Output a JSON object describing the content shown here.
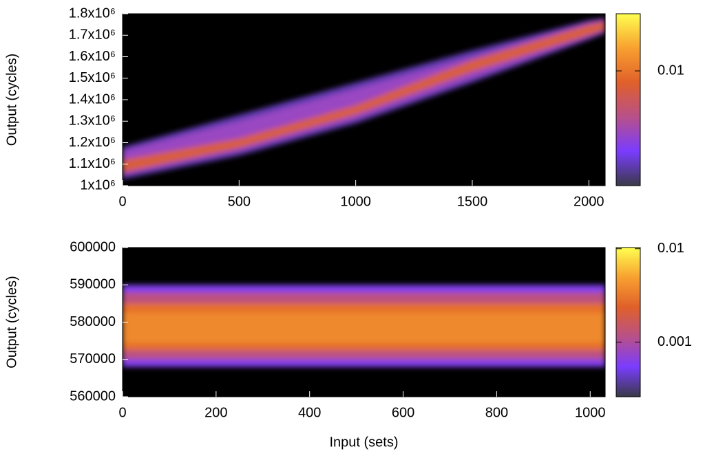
{
  "chart_data": [
    {
      "type": "heatmap",
      "ylabel": "Output (cycles)",
      "xlim": [
        0,
        2070
      ],
      "xticks": [
        0,
        500,
        1000,
        1500,
        2000
      ],
      "ylim": [
        1000000,
        1800000
      ],
      "yticks": [
        {
          "value": 1000000,
          "label": "1x10⁶"
        },
        {
          "value": 1100000,
          "label": "1.1x10⁶"
        },
        {
          "value": 1200000,
          "label": "1.2x10⁶"
        },
        {
          "value": 1300000,
          "label": "1.3x10⁶"
        },
        {
          "value": 1400000,
          "label": "1.4x10⁶"
        },
        {
          "value": 1500000,
          "label": "1.5x10⁶"
        },
        {
          "value": 1600000,
          "label": "1.6x10⁶"
        },
        {
          "value": 1700000,
          "label": "1.7x10⁶"
        },
        {
          "value": 1800000,
          "label": "1.8x10⁶"
        }
      ],
      "clim": [
        0.0011,
        0.03
      ],
      "cticks": [
        0.01
      ],
      "log_color": true,
      "palette": [
        "#3a3a48",
        "#7a3cff",
        "#b8508a",
        "#e0602a",
        "#f8a030",
        "#ffff50"
      ],
      "x": [
        0,
        500,
        1000,
        1500,
        2000,
        2070
      ],
      "bands": [
        {
          "level": 0.0016,
          "lower": [
            1030000,
            1140000,
            1290000,
            1480000,
            1680000,
            1710000
          ],
          "upper": [
            1180000,
            1330000,
            1480000,
            1630000,
            1770000,
            1780000
          ]
        },
        {
          "level": 0.003,
          "lower": [
            1050000,
            1160000,
            1310000,
            1500000,
            1690000,
            1720000
          ],
          "upper": [
            1160000,
            1300000,
            1450000,
            1600000,
            1760000,
            1775000
          ]
        },
        {
          "level": 0.007,
          "lower": [
            1060000,
            1175000,
            1330000,
            1530000,
            1700000,
            1725000
          ],
          "upper": [
            1120000,
            1220000,
            1375000,
            1585000,
            1750000,
            1765000
          ]
        }
      ]
    },
    {
      "type": "heatmap",
      "ylabel": "Output (cycles)",
      "xlabel": "Input (sets)",
      "xlim": [
        0,
        1032
      ],
      "xticks": [
        0,
        200,
        400,
        600,
        800,
        1000
      ],
      "ylim": [
        560000,
        600000
      ],
      "yticks": [
        560000,
        570000,
        580000,
        590000,
        600000
      ],
      "clim": [
        0.00026,
        0.0103
      ],
      "cticks": [
        0.001,
        0.01
      ],
      "log_color": true,
      "palette": [
        "#3a3a48",
        "#7a3cff",
        "#b8508a",
        "#e0602a",
        "#f8a030",
        "#ffff50"
      ],
      "x": [
        0,
        1032
      ],
      "bands": [
        {
          "level": 0.0006,
          "lower": [
            568000,
            568000
          ],
          "upper": [
            590000,
            590000
          ]
        },
        {
          "level": 0.0012,
          "lower": [
            570000,
            570000
          ],
          "upper": [
            588000,
            588000
          ]
        },
        {
          "level": 0.0028,
          "lower": [
            572500,
            572500
          ],
          "upper": [
            585000,
            585000
          ]
        },
        {
          "level": 0.0038,
          "lower": [
            574500,
            574500
          ],
          "upper": [
            582500,
            582500
          ]
        }
      ]
    }
  ]
}
